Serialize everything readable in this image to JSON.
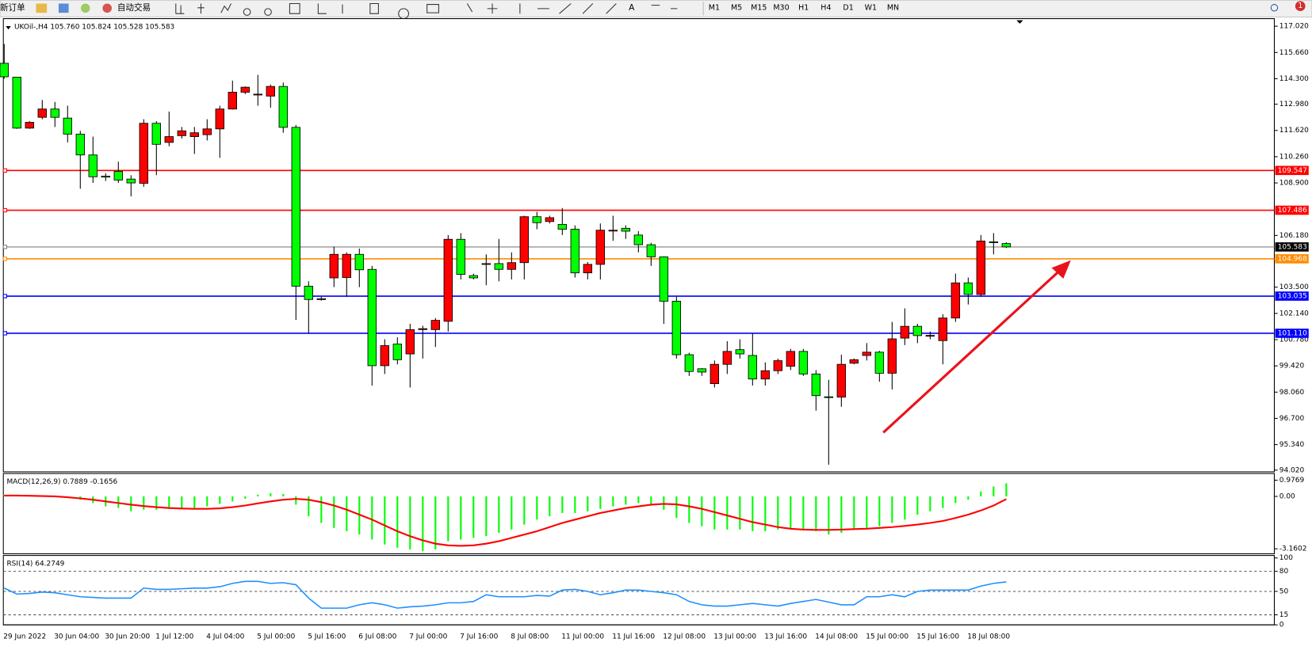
{
  "toolbar": {
    "new_order": "新订单",
    "auto_trading": "自动交易",
    "timeframes": [
      "M1",
      "M5",
      "M15",
      "M30",
      "H1",
      "H4",
      "D1",
      "W1",
      "MN"
    ],
    "notifications": "1"
  },
  "chart_data": [
    {
      "type": "candlestick",
      "title": "UKOil-,H4 105.760 105.824 105.528 105.583",
      "categories": [
        "29 Jun 2022",
        null,
        null,
        null,
        "30 Jun 04:00",
        null,
        null,
        null,
        "30 Jun 20:00",
        null,
        null,
        null,
        "1 Jul 12:00",
        null,
        null,
        null,
        "4 Jul 04:00",
        null,
        null,
        null,
        "5 Jul 00:00",
        null,
        null,
        null,
        "5 Jul 16:00",
        null,
        null,
        null,
        "6 Jul 08:00",
        null,
        null,
        null,
        "7 Jul 00:00",
        null,
        null,
        null,
        "7 Jul 16:00",
        null,
        null,
        null,
        "8 Jul 08:00",
        null,
        null,
        null,
        "11 Jul 00:00",
        null,
        null,
        null,
        "11 Jul 16:00",
        null,
        null,
        null,
        "12 Jul 08:00",
        null,
        null,
        null,
        "13 Jul 00:00",
        null,
        null,
        null,
        "13 Jul 16:00",
        null,
        null,
        null,
        "14 Jul 08:00",
        null,
        null,
        null,
        "15 Jul 00:00",
        null,
        null,
        null,
        "15 Jul 16:00",
        null,
        null,
        null,
        "18 Jul 08:00",
        null,
        null,
        null
      ],
      "open": [
        115.1,
        114.38,
        111.74,
        112.3,
        112.73,
        112.26,
        111.43,
        110.35,
        109.25,
        109.5,
        109.1,
        108.88,
        111.99,
        111.0,
        111.35,
        111.3,
        111.4,
        111.7,
        112.73,
        113.6,
        113.5,
        113.4,
        113.9,
        111.78,
        103.55,
        102.9,
        103.98,
        104.0,
        105.2,
        104.42,
        99.43,
        100.55,
        100.04,
        101.3,
        101.3,
        101.73,
        105.98,
        104.1,
        104.7,
        104.72,
        104.42,
        104.77,
        107.15,
        106.9,
        106.75,
        106.5,
        104.24,
        104.68,
        106.45,
        106.55,
        106.2,
        105.7,
        105.07,
        102.77,
        100.0,
        99.27,
        98.5,
        99.5,
        100.26,
        99.96,
        98.74,
        99.17,
        99.4,
        100.17,
        99.0,
        97.82,
        97.8,
        99.56,
        99.96,
        100.13,
        99.04,
        100.86,
        101.47,
        100.99,
        100.73,
        101.9,
        103.72,
        103.12,
        105.85,
        105.76
      ],
      "high": [
        116.1,
        114.4,
        112.1,
        113.2,
        113.1,
        112.9,
        111.6,
        111.3,
        109.4,
        110.0,
        109.3,
        112.2,
        112.1,
        112.6,
        111.8,
        111.8,
        112.2,
        112.9,
        114.2,
        113.9,
        114.5,
        114.0,
        114.1,
        111.9,
        103.8,
        103.0,
        105.6,
        105.3,
        105.5,
        104.6,
        100.8,
        100.9,
        101.6,
        101.5,
        101.9,
        106.2,
        106.3,
        104.2,
        105.2,
        106.0,
        105.3,
        107.2,
        107.4,
        107.2,
        107.6,
        106.7,
        104.8,
        106.8,
        107.2,
        106.7,
        106.4,
        105.8,
        105.1,
        103.0,
        100.1,
        99.3,
        99.7,
        100.7,
        100.8,
        101.1,
        99.6,
        99.8,
        100.3,
        100.3,
        99.2,
        98.7,
        100.0,
        99.8,
        100.6,
        100.2,
        101.7,
        102.4,
        101.6,
        101.2,
        102.1,
        104.2,
        104.0,
        106.2,
        106.3,
        105.824
      ],
      "low": [
        114.3,
        111.7,
        111.7,
        112.2,
        111.8,
        111.0,
        108.6,
        108.9,
        109.0,
        108.9,
        108.2,
        108.7,
        109.3,
        110.8,
        111.2,
        110.4,
        111.1,
        110.2,
        112.7,
        113.5,
        112.9,
        112.8,
        111.5,
        101.8,
        101.1,
        102.8,
        103.5,
        103.0,
        103.5,
        98.4,
        99.0,
        99.5,
        98.3,
        99.8,
        100.4,
        101.2,
        103.9,
        103.9,
        103.6,
        103.8,
        103.9,
        103.9,
        106.5,
        106.8,
        106.2,
        104.0,
        103.9,
        103.9,
        105.9,
        106.0,
        105.3,
        104.6,
        101.6,
        99.8,
        98.9,
        98.9,
        98.3,
        99.0,
        99.8,
        98.4,
        98.4,
        99.0,
        99.2,
        98.9,
        97.1,
        94.3,
        97.3,
        99.5,
        99.7,
        98.6,
        98.2,
        100.5,
        100.6,
        100.8,
        99.5,
        101.7,
        102.6,
        103.0,
        105.2,
        105.528
      ],
      "close": [
        114.4,
        111.74,
        112.04,
        112.73,
        112.3,
        111.43,
        110.35,
        109.22,
        109.2,
        109.05,
        108.9,
        111.99,
        110.9,
        111.3,
        111.6,
        111.5,
        111.7,
        112.73,
        113.6,
        113.86,
        113.5,
        113.9,
        111.78,
        103.55,
        102.86,
        102.9,
        105.2,
        105.2,
        104.4,
        99.43,
        100.47,
        99.74,
        101.3,
        101.35,
        101.78,
        105.98,
        104.16,
        103.98,
        104.72,
        104.42,
        104.77,
        107.15,
        106.84,
        107.1,
        106.5,
        104.24,
        104.68,
        106.45,
        106.45,
        106.4,
        105.7,
        105.07,
        102.77,
        100.0,
        99.13,
        99.1,
        99.5,
        100.17,
        100.04,
        98.74,
        99.17,
        99.69,
        100.17,
        99.0,
        97.88,
        97.78,
        99.5,
        99.74,
        100.13,
        99.04,
        100.82,
        101.47,
        100.99,
        101.0,
        101.9,
        103.72,
        103.12,
        105.89,
        105.82,
        105.583
      ],
      "up_color": "#ff0000",
      "down_color": "#00ff00",
      "ylim": [
        93.93,
        117.37
      ],
      "yticks": [
        {
          "value": 117.02,
          "label": "117.020"
        },
        {
          "value": 115.66,
          "label": "115.660"
        },
        {
          "value": 114.3,
          "label": "114.300"
        },
        {
          "value": 112.98,
          "label": "112.980"
        },
        {
          "value": 111.62,
          "label": "111.620"
        },
        {
          "value": 110.26,
          "label": "110.260"
        },
        {
          "value": 108.9,
          "label": "108.900"
        },
        {
          "value": 106.18,
          "label": "106.180"
        },
        {
          "value": 103.5,
          "label": "103.500"
        },
        {
          "value": 102.14,
          "label": "102.140"
        },
        {
          "value": 100.78,
          "label": "100.780"
        },
        {
          "value": 99.42,
          "label": "99.420"
        },
        {
          "value": 98.06,
          "label": "98.060"
        },
        {
          "value": 96.7,
          "label": "96.700"
        },
        {
          "value": 95.34,
          "label": "95.340"
        },
        {
          "value": 94.02,
          "label": "94.020"
        }
      ],
      "levels": [
        {
          "value": 109.547,
          "label": "109.547",
          "color": "#ff0000"
        },
        {
          "value": 107.486,
          "label": "107.486",
          "color": "#ff0000"
        },
        {
          "value": 105.583,
          "label": "105.583",
          "color": "#808080"
        },
        {
          "value": 104.968,
          "label": "104.968",
          "color": "#ff8c00"
        },
        {
          "value": 103.035,
          "label": "103.035",
          "color": "#0000ff"
        },
        {
          "value": 101.11,
          "label": "101.110",
          "color": "#0000ff"
        }
      ]
    },
    {
      "type": "macd",
      "title": "MACD(12,26,9) 0.7889 -0.1656",
      "histogram": {
        "color": "#00ff00",
        "values": [
          0.1,
          0.1,
          0.05,
          0.05,
          0.0,
          -0.05,
          -0.2,
          -0.4,
          -0.6,
          -0.7,
          -0.9,
          -0.8,
          -0.8,
          -0.75,
          -0.7,
          -0.7,
          -0.6,
          -0.45,
          -0.3,
          -0.15,
          0.1,
          0.2,
          0.15,
          -0.5,
          -1.2,
          -1.6,
          -1.9,
          -2.1,
          -2.3,
          -2.6,
          -2.9,
          -3.1,
          -3.2,
          -3.3,
          -3.2,
          -2.7,
          -2.6,
          -2.5,
          -2.4,
          -2.2,
          -2.0,
          -1.7,
          -1.4,
          -1.2,
          -1.0,
          -1.0,
          -0.9,
          -0.75,
          -0.6,
          -0.5,
          -0.4,
          -0.45,
          -0.8,
          -1.3,
          -1.6,
          -1.8,
          -2.0,
          -2.0,
          -2.0,
          -2.1,
          -2.1,
          -2.0,
          -1.9,
          -2.0,
          -2.1,
          -2.3,
          -2.2,
          -2.0,
          -1.9,
          -1.8,
          -1.6,
          -1.4,
          -1.1,
          -0.9,
          -0.7,
          -0.4,
          -0.2,
          0.3,
          0.6,
          0.7889
        ]
      },
      "signal": {
        "color": "#ff0000",
        "values": [
          0.05,
          0.05,
          0.04,
          0.02,
          0.0,
          -0.05,
          -0.12,
          -0.2,
          -0.3,
          -0.4,
          -0.5,
          -0.58,
          -0.65,
          -0.7,
          -0.73,
          -0.75,
          -0.75,
          -0.72,
          -0.65,
          -0.55,
          -0.42,
          -0.3,
          -0.2,
          -0.15,
          -0.2,
          -0.35,
          -0.55,
          -0.8,
          -1.1,
          -1.4,
          -1.75,
          -2.1,
          -2.4,
          -2.65,
          -2.85,
          -2.95,
          -2.98,
          -2.95,
          -2.85,
          -2.7,
          -2.5,
          -2.3,
          -2.1,
          -1.85,
          -1.6,
          -1.4,
          -1.2,
          -1.0,
          -0.85,
          -0.7,
          -0.6,
          -0.5,
          -0.45,
          -0.48,
          -0.6,
          -0.75,
          -0.95,
          -1.15,
          -1.35,
          -1.55,
          -1.7,
          -1.85,
          -1.95,
          -2.0,
          -2.02,
          -2.02,
          -2.0,
          -1.97,
          -1.95,
          -1.9,
          -1.85,
          -1.78,
          -1.7,
          -1.6,
          -1.48,
          -1.3,
          -1.1,
          -0.85,
          -0.55,
          -0.1656
        ]
      },
      "ylim": [
        -3.46,
        1.38
      ],
      "yticks": [
        0.9769,
        {
          "value": 0,
          "label": "0.00"
        },
        -3.1602
      ]
    },
    {
      "type": "line",
      "title": "RSI(14) 64.2749",
      "color": "#1e90ff",
      "values": [
        55,
        46,
        47,
        49,
        48,
        45,
        42,
        41,
        40,
        40,
        40,
        55,
        53,
        53,
        54,
        55,
        55,
        57,
        62,
        65,
        65,
        62,
        63,
        60,
        40,
        25,
        25,
        25,
        30,
        33,
        30,
        25,
        27,
        28,
        30,
        33,
        33,
        35,
        45,
        42,
        42,
        42,
        44,
        43,
        52,
        53,
        50,
        45,
        48,
        52,
        52,
        50,
        48,
        45,
        35,
        30,
        28,
        28,
        30,
        32,
        30,
        28,
        32,
        35,
        38,
        34,
        30,
        30,
        42,
        42,
        45,
        42,
        50,
        52,
        52,
        52,
        52,
        58,
        62,
        64.2749
      ],
      "ylim": [
        0,
        100
      ],
      "yticks": [
        0,
        15,
        50,
        80,
        100
      ],
      "dashed_levels": [
        15,
        50,
        80
      ]
    }
  ]
}
